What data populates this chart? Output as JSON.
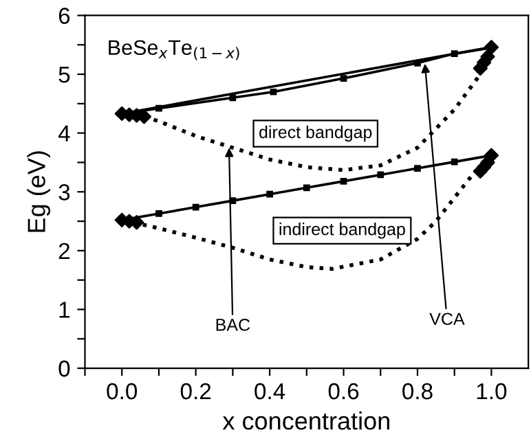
{
  "chart_data": {
    "type": "line",
    "title": "BeSe$_{x}$Te$_{(1−x)}$",
    "xlabel": "x concentration",
    "ylabel": "Eg (eV)",
    "xlim": [
      -0.1,
      1.1
    ],
    "ylim": [
      0,
      6
    ],
    "xticks": [
      {
        "value": -0.1,
        "label": null
      },
      {
        "value": 0.0,
        "label": "0.0"
      },
      {
        "value": 0.1,
        "label": null
      },
      {
        "value": 0.2,
        "label": "0.2"
      },
      {
        "value": 0.3,
        "label": null
      },
      {
        "value": 0.4,
        "label": "0.4"
      },
      {
        "value": 0.5,
        "label": null
      },
      {
        "value": 0.6,
        "label": "0.6"
      },
      {
        "value": 0.7,
        "label": null
      },
      {
        "value": 0.8,
        "label": "0.8"
      },
      {
        "value": 0.9,
        "label": null
      },
      {
        "value": 1.0,
        "label": "1.0"
      }
    ],
    "yticks": [
      0,
      {
        "value": 0.5,
        "label": null
      },
      1,
      {
        "value": 1.5,
        "label": null
      },
      2,
      {
        "value": 2.5,
        "label": null
      },
      3,
      {
        "value": 3.5,
        "label": null
      },
      4,
      {
        "value": 4.5,
        "label": null
      },
      5,
      {
        "value": 5.5,
        "label": null
      },
      6
    ],
    "grid": false,
    "legend": false,
    "series": [
      {
        "color": "#000000",
        "line_style": "solid",
        "x": [
          0.0,
          1.0
        ],
        "values": [
          4.33,
          5.46
        ]
      },
      {
        "color": "#000000",
        "line_style": "solid",
        "marker": "square",
        "x": [
          0.0,
          0.1,
          0.3,
          0.41,
          0.6,
          0.8,
          0.9,
          1.0
        ],
        "values": [
          4.33,
          4.42,
          4.6,
          4.7,
          4.93,
          5.19,
          5.35,
          5.45
        ]
      },
      {
        "color": "#000000",
        "line_style": "dotted",
        "marker": "none",
        "x": [
          0.06,
          0.1,
          0.2,
          0.3,
          0.4,
          0.5,
          0.6,
          0.7,
          0.8,
          0.9,
          0.97
        ],
        "values": [
          4.28,
          4.2,
          3.95,
          3.75,
          3.55,
          3.42,
          3.37,
          3.45,
          3.75,
          4.4,
          5.0
        ]
      },
      {
        "type": "scatter",
        "color": "#000000",
        "marker": "diamond",
        "x": [
          0.0,
          0.02,
          0.04,
          0.06,
          1.0,
          0.99,
          0.98,
          0.97
        ],
        "values": [
          4.33,
          4.31,
          4.3,
          4.28,
          5.46,
          5.3,
          5.2,
          5.1
        ]
      },
      {
        "color": "#000000",
        "line_style": "solid",
        "marker": "square",
        "x": [
          0.0,
          0.1,
          0.2,
          0.3,
          0.4,
          0.5,
          0.6,
          0.7,
          0.8,
          0.9,
          1.0
        ],
        "values": [
          2.52,
          2.63,
          2.74,
          2.85,
          2.96,
          3.07,
          3.18,
          3.29,
          3.4,
          3.51,
          3.62
        ]
      },
      {
        "color": "#000000",
        "line_style": "dotted",
        "marker": "none",
        "x": [
          0.03,
          0.1,
          0.2,
          0.3,
          0.4,
          0.5,
          0.57,
          0.7,
          0.8,
          0.85,
          0.9,
          0.95
        ],
        "values": [
          2.48,
          2.38,
          2.22,
          2.05,
          1.85,
          1.72,
          1.69,
          1.85,
          2.2,
          2.5,
          2.9,
          3.3
        ]
      },
      {
        "type": "scatter",
        "color": "#000000",
        "marker": "diamond",
        "x": [
          0.0,
          0.02,
          0.04,
          1.0,
          0.99,
          0.98,
          0.97
        ],
        "values": [
          2.52,
          2.5,
          2.48,
          3.62,
          3.5,
          3.42,
          3.35
        ]
      }
    ],
    "annotations": [
      "direct bandgap",
      "indirect bandgap",
      {
        "text": "BAC",
        "x": 0.29,
        "y": 3.75
      },
      {
        "text": "VCA",
        "x": 0.82,
        "y": 5.18
      }
    ]
  }
}
